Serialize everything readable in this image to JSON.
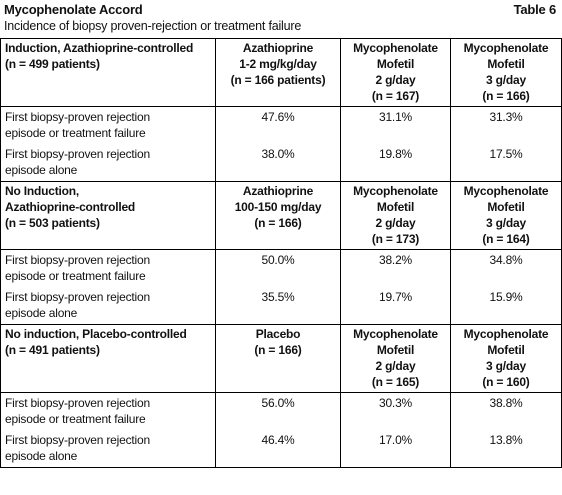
{
  "header": {
    "title": "Mycophenolate Accord",
    "table_label": "Table 6",
    "subtitle": "Incidence of biopsy proven-rejection or treatment failure"
  },
  "sections": [
    {
      "header": [
        "Induction, Azathioprine-controlled\n(n = 499 patients)",
        "Azathioprine\n1-2 mg/kg/day\n(n = 166 patients)",
        "Mycophenolate\nMofetil\n2 g/day\n(n = 167)",
        "Mycophenolate\nMofetil\n3 g/day\n(n = 166)"
      ],
      "rows": [
        [
          "First biopsy-proven rejection\nepisode or treatment failure",
          "47.6%",
          "31.1%",
          "31.3%"
        ],
        [
          "First biopsy-proven rejection\nepisode alone",
          "38.0%",
          "19.8%",
          "17.5%"
        ]
      ]
    },
    {
      "header": [
        "No Induction,\nAzathioprine-controlled\n(n = 503 patients)",
        "Azathioprine\n100-150 mg/day\n(n = 166)",
        "Mycophenolate\nMofetil\n2 g/day\n(n = 173)",
        "Mycophenolate\nMofetil\n3 g/day\n(n = 164)"
      ],
      "rows": [
        [
          "First biopsy-proven rejection\nepisode or treatment failure",
          "50.0%",
          "38.2%",
          "34.8%"
        ],
        [
          "First biopsy-proven rejection\nepisode alone",
          "35.5%",
          "19.7%",
          "15.9%"
        ]
      ]
    },
    {
      "header": [
        "No induction, Placebo-controlled\n(n = 491 patients)",
        "Placebo\n(n = 166)",
        "Mycophenolate\nMofetil\n2 g/day\n(n = 165)",
        "Mycophenolate\nMofetil\n3 g/day\n(n = 160)"
      ],
      "rows": [
        [
          "First biopsy-proven rejection\nepisode or treatment failure",
          "56.0%",
          "30.3%",
          "38.8%"
        ],
        [
          "First biopsy-proven rejection\nepisode alone",
          "46.4%",
          "17.0%",
          "13.8%"
        ]
      ]
    }
  ]
}
